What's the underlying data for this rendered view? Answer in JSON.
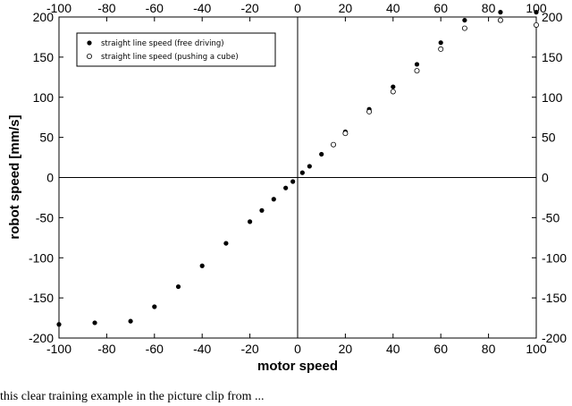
{
  "chart_data": {
    "type": "scatter",
    "title": "",
    "xlabel": "motor speed",
    "ylabel": "robot speed [mm/s]",
    "xlim": [
      -100,
      100
    ],
    "ylim": [
      -200,
      200
    ],
    "x_ticks": [
      -100,
      -80,
      -60,
      -40,
      -20,
      0,
      20,
      40,
      60,
      80,
      100
    ],
    "y_ticks": [
      -200,
      -150,
      -100,
      -50,
      0,
      50,
      100,
      150,
      200
    ],
    "grid": false,
    "zero_lines": true,
    "legend_position": "top-left",
    "series": [
      {
        "name": "straight line speed (free driving)",
        "marker": "filled-circle",
        "color": "#000000",
        "x": [
          -100,
          -85,
          -70,
          -60,
          -50,
          -40,
          -30,
          -20,
          -15,
          -10,
          -5,
          -2,
          2,
          5,
          10,
          20,
          30,
          40,
          50,
          60,
          70,
          85,
          100
        ],
        "y": [
          -183,
          -181,
          -179,
          -161,
          -136,
          -110,
          -82,
          -55,
          -41,
          -27,
          -13,
          -5,
          6,
          14,
          29,
          57,
          85,
          113,
          141,
          168,
          196,
          206,
          206
        ]
      },
      {
        "name": "straight line speed (pushing a cube)",
        "marker": "open-circle",
        "color": "#000000",
        "x": [
          15,
          20,
          30,
          40,
          50,
          60,
          70,
          85,
          100
        ],
        "y": [
          41,
          55,
          82,
          107,
          133,
          160,
          186,
          196,
          190
        ]
      }
    ]
  },
  "caption_fragment": "this clear training example in the picture clip from ..."
}
